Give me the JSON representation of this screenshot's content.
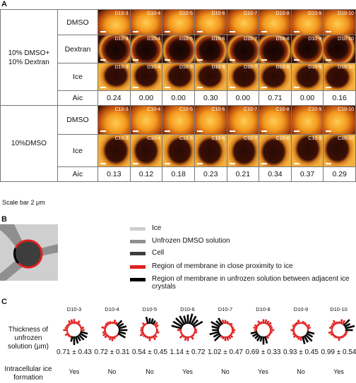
{
  "panelA": {
    "letter": "A",
    "groups": [
      {
        "name": "10% DMSO+\n10% Dextran",
        "prefix": "D",
        "rows": [
          "DMSO",
          "Dextran",
          "Ice"
        ],
        "aic_label": "Aic",
        "aic": [
          "0.24",
          "0.00",
          "0.00",
          "0.30",
          "0.00",
          "0.71",
          "0.00",
          "0.16"
        ]
      },
      {
        "name": "10%DMSO",
        "prefix": "C",
        "rows": [
          "DMSO",
          "Ice"
        ],
        "aic_label": "Aic",
        "aic": [
          "0.13",
          "0.12",
          "0.18",
          "0.23",
          "0.21",
          "0.34",
          "0.37",
          "0.29"
        ]
      }
    ],
    "cell_ids": [
      "10-3",
      "10-4",
      "10-5",
      "10-6",
      "10-7",
      "10-8",
      "10-9",
      "10-10"
    ],
    "scale_bar": "Scale bar 2 μm"
  },
  "panelB": {
    "letter": "B",
    "legend": [
      {
        "label": "Ice",
        "color": "#cfcfcf"
      },
      {
        "label": "Unfrozen DMSO solution",
        "color": "#8f8f8f"
      },
      {
        "label": "Cell",
        "color": "#3d3d3d"
      },
      {
        "label": "Region of membrane in close proximity to ice",
        "color": "#e02020"
      },
      {
        "label": "Region of membrane in unfrozen solution between adjacent ice crystals",
        "color": "#000000"
      }
    ]
  },
  "panelC": {
    "letter": "C",
    "row1_label": "Thickness of\nunfrozen\nsolution (μm)",
    "row2_label": "Intracellular ice\nformation",
    "cells": [
      {
        "id": "D10-3",
        "thickness": "0.71 ± 0.43",
        "ice": "Yes"
      },
      {
        "id": "D10-4",
        "thickness": "0.72 ± 0.31",
        "ice": "No"
      },
      {
        "id": "D10-5",
        "thickness": "0.54 ± 0.45",
        "ice": "No"
      },
      {
        "id": "D10-6",
        "thickness": "1.14 ± 0.72",
        "ice": "Yes"
      },
      {
        "id": "D10-7",
        "thickness": "1.02 ± 0.47",
        "ice": "No"
      },
      {
        "id": "D10-8",
        "thickness": "0.69 ± 0.33",
        "ice": "Yes"
      },
      {
        "id": "D10-9",
        "thickness": "0.93 ± 0.45",
        "ice": "No"
      },
      {
        "id": "D10-10",
        "thickness": "0.99 ± 0.54",
        "ice": "Yes"
      }
    ]
  }
}
